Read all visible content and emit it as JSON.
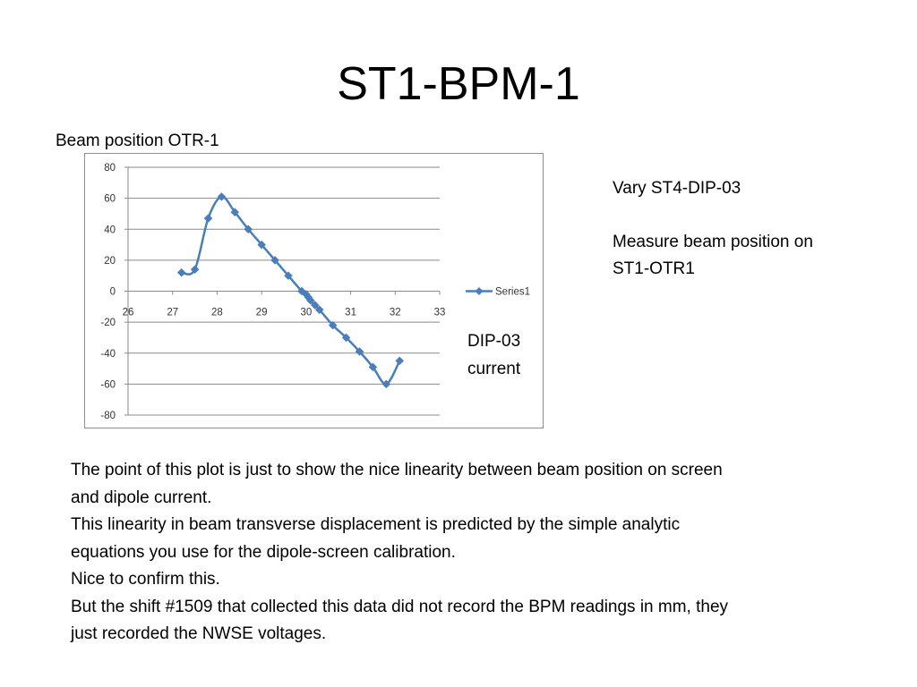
{
  "slide": {
    "title": "ST1-BPM-1",
    "chart_caption": "Beam position OTR-1",
    "side_note_1": "Vary ST4-DIP-03",
    "side_note_2": "Measure  beam position on ST1-OTR1",
    "x_axis_note": "DIP-03 current",
    "body_lines": [
      "The point of this plot is just to show the nice linearity between beam position on screen and dipole current.",
      "This linearity in beam transverse displacement is predicted by the simple analytic equations you use for the dipole-screen calibration.",
      "Nice to confirm this.",
      "But the shift #1509 that collected this data did not record the BPM readings in mm, they just recorded the NWSE voltages."
    ]
  },
  "chart_data": {
    "type": "line",
    "xlim": [
      26,
      33
    ],
    "ylim": [
      -80,
      80
    ],
    "xticks": [
      26,
      27,
      28,
      29,
      30,
      31,
      32,
      33
    ],
    "yticks": [
      80,
      60,
      40,
      20,
      0,
      -20,
      -40,
      -60,
      -80
    ],
    "grid": "horizontal",
    "legend": "right",
    "series_color": "#4a7ebb",
    "series": [
      {
        "name": "Series1",
        "x": [
          27.2,
          27.5,
          27.8,
          28.1,
          28.4,
          28.7,
          29.0,
          29.3,
          29.6,
          29.9,
          30.0,
          30.05,
          30.1,
          30.2,
          30.3,
          30.6,
          30.9,
          31.2,
          31.5,
          31.8,
          32.1
        ],
        "y": [
          12,
          14,
          47,
          61,
          51,
          40,
          30,
          20,
          10,
          0,
          -2,
          -4,
          -6,
          -9,
          -12,
          -22,
          -30,
          -39,
          -49,
          -60,
          -45
        ]
      }
    ]
  }
}
